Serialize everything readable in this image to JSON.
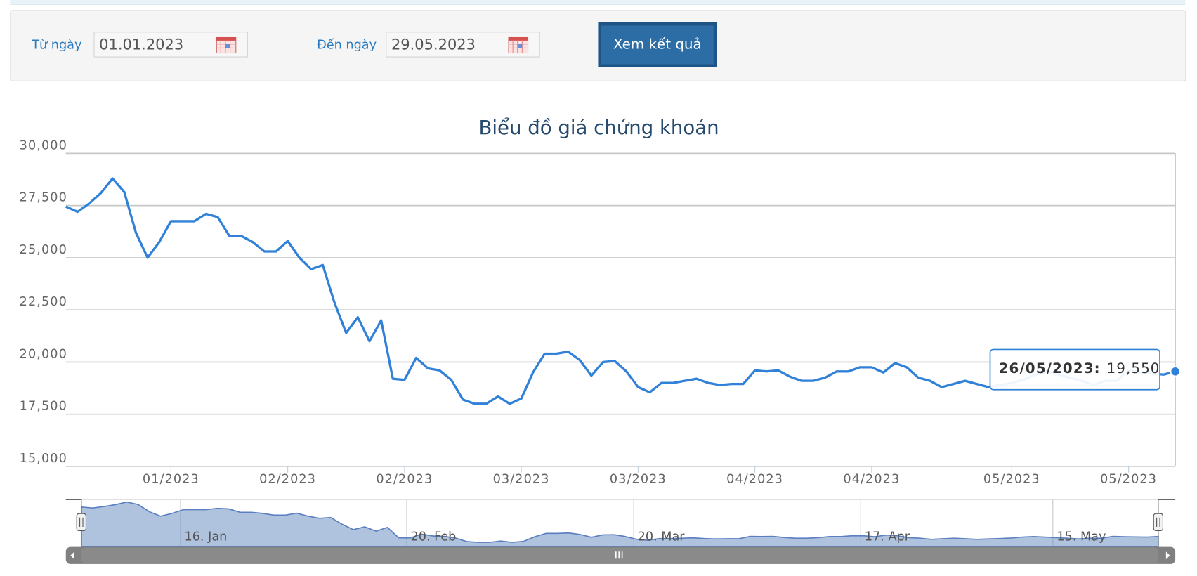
{
  "form": {
    "from_label": "Từ ngày",
    "from_value": "01.01.2023",
    "to_label": "Đến ngày",
    "to_value": "29.05.2023",
    "submit": "Xem kết quả"
  },
  "chart_data": {
    "type": "line",
    "title": "Biểu đồ giá chứng khoán",
    "categories": [
      null,
      null,
      null,
      null,
      null,
      null,
      null,
      null,
      null,
      "01/2023",
      null,
      null,
      null,
      null,
      null,
      null,
      null,
      null,
      null,
      "02/2023",
      null,
      null,
      null,
      null,
      null,
      null,
      null,
      null,
      null,
      "02/2023",
      null,
      null,
      null,
      null,
      null,
      null,
      null,
      null,
      null,
      "03/2023",
      null,
      null,
      null,
      null,
      null,
      null,
      null,
      null,
      null,
      "03/2023",
      null,
      null,
      null,
      null,
      null,
      null,
      null,
      null,
      null,
      "04/2023",
      null,
      null,
      null,
      null,
      null,
      null,
      null,
      null,
      null,
      "04/2023",
      null,
      null,
      null,
      null,
      null,
      null,
      null,
      null,
      null,
      null,
      null,
      "05/2023",
      null,
      null,
      null,
      null,
      null,
      null,
      null,
      null,
      null,
      "05/2023",
      null,
      null,
      null,
      null
    ],
    "series": [
      {
        "color": "#3281d8",
        "values": [
          27450,
          27200,
          27600,
          28100,
          28800,
          28150,
          26200,
          25000,
          25750,
          26750,
          26750,
          26750,
          27100,
          26950,
          26050,
          26050,
          25750,
          25300,
          25300,
          25800,
          25000,
          24450,
          24650,
          22850,
          21400,
          22150,
          21000,
          22000,
          19200,
          19150,
          20200,
          19700,
          19600,
          19150,
          18200,
          18000,
          18000,
          18350,
          18000,
          18250,
          19500,
          20400,
          20400,
          20500,
          20100,
          19350,
          20000,
          20050,
          19550,
          18800,
          18550,
          19000,
          19000,
          19100,
          19200,
          19000,
          18900,
          18950,
          18950,
          19600,
          19550,
          19600,
          19300,
          19100,
          19100,
          19250,
          19550,
          19550,
          19750,
          19750,
          19500,
          19950,
          19750,
          19250,
          19100,
          18800,
          18950,
          19100,
          18950,
          18800,
          18900,
          19000,
          19150,
          19400,
          19550,
          19400,
          19250,
          19100,
          18900,
          19100,
          19100,
          19600,
          19500,
          19450,
          19400,
          19550
        ],
        "value_labels": [
          null,
          null,
          null,
          null,
          null,
          null,
          null,
          null,
          null,
          null,
          null,
          null,
          null,
          null,
          null,
          null,
          null,
          null,
          null,
          null,
          null,
          null,
          null,
          null,
          null,
          null,
          null,
          null,
          null,
          null,
          null,
          null,
          null,
          null,
          null,
          null,
          null,
          null,
          null,
          null,
          null,
          null,
          null,
          null,
          null,
          null,
          null,
          null,
          null,
          null,
          null,
          null,
          null,
          null,
          null,
          null,
          null,
          null,
          null,
          null,
          null,
          null,
          null,
          null,
          null,
          null,
          null,
          null,
          null,
          null,
          null,
          null,
          null,
          null,
          null,
          null,
          null,
          null,
          null,
          null,
          null,
          null,
          null,
          null,
          null,
          null,
          null,
          null,
          null,
          null,
          null,
          null,
          null,
          null,
          null,
          "19,550"
        ]
      }
    ],
    "ylim": [
      15000,
      30000
    ],
    "yticks": [
      {
        "value": 15000,
        "label": "15,000"
      },
      {
        "value": 17500,
        "label": "17,500"
      },
      {
        "value": 20000,
        "label": "20,000"
      },
      {
        "value": 22500,
        "label": "22,500"
      },
      {
        "value": 25000,
        "label": "25,000"
      },
      {
        "value": 27500,
        "label": "27,500"
      },
      {
        "value": 30000,
        "label": "30,000"
      }
    ],
    "grid": true,
    "tooltip": {
      "label": "26/05/2023:"
    },
    "navigator": {
      "labels": [
        "16. Jan",
        "20. Feb",
        "20. Mar",
        "17. Apr",
        "15. May"
      ]
    }
  }
}
